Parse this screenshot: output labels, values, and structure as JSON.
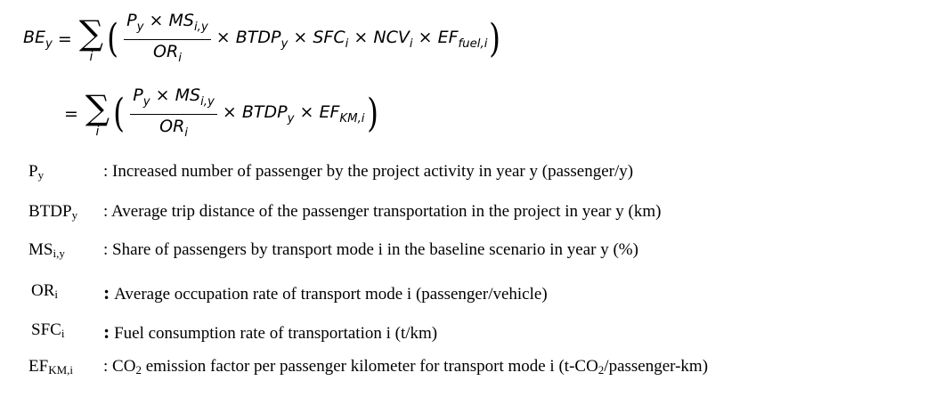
{
  "equation": {
    "lhs_symbol": "BE",
    "lhs_sub": "y",
    "equals": "=",
    "sum_index": "i",
    "line1": {
      "num_P": "P",
      "num_P_sub": "y",
      "times": "×",
      "num_MS": "MS",
      "num_MS_sub": "i,y",
      "den_OR": "OR",
      "den_OR_sub": "i",
      "t1": "BTDP",
      "t1_sub": "y",
      "t2": "SFC",
      "t2_sub": "i",
      "t3": "NCV",
      "t3_sub": "i",
      "t4": "EF",
      "t4_sub": "fuel,i"
    },
    "line2": {
      "t1": "BTDP",
      "t1_sub": "y",
      "t2": "EF",
      "t2_sub": "KM,i"
    }
  },
  "variables": [
    {
      "symbol": "P",
      "sub": "y",
      "description": ": Increased number of passenger by the project activity in year y (passenger/y)"
    },
    {
      "symbol": "BTDP",
      "sub": "y",
      "description": ": Average trip distance of the passenger transportation in the project in year y (km)"
    },
    {
      "symbol": "MS",
      "sub": "i,y",
      "description": ": Share of passengers by transport mode i in the baseline scenario in year y (%)"
    },
    {
      "symbol": "OR",
      "sub": "i",
      "description": "Average occupation rate of transport mode i (passenger/vehicle)",
      "colon": ":"
    },
    {
      "symbol": "SFC",
      "sub": "i",
      "description": "Fuel consumption rate of transportation i (t/km)",
      "colon": ":"
    },
    {
      "symbol": "EF",
      "sub": "KM,i",
      "description_pre": ": CO",
      "description_sub": "2",
      "description_mid": " emission factor per passenger kilometer for transport mode i (t-CO",
      "description_sub2": "2",
      "description_post": "/passenger-km)"
    }
  ]
}
